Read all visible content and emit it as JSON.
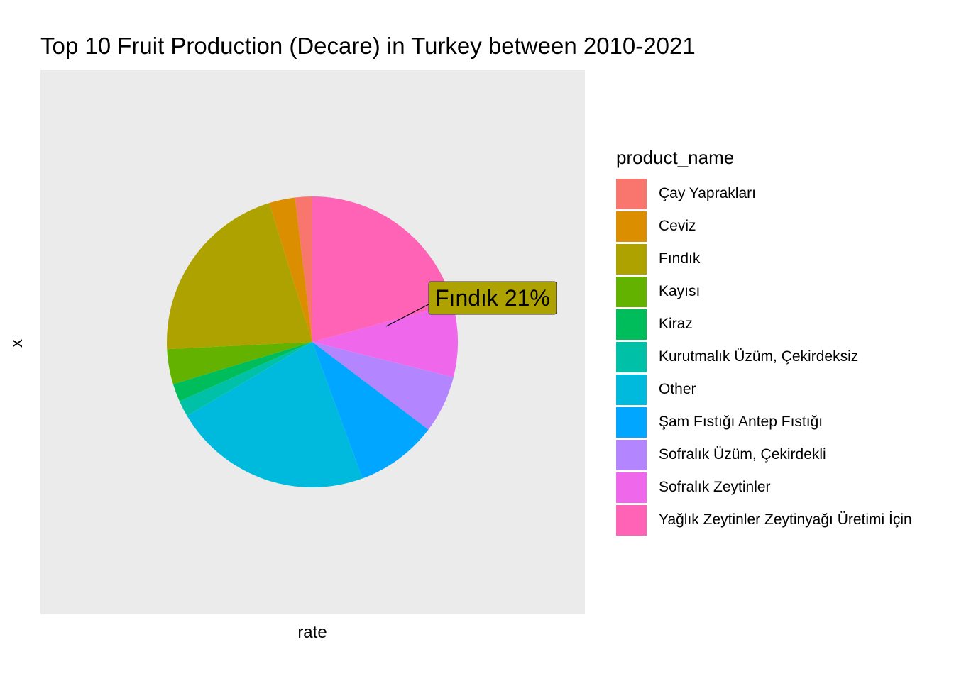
{
  "chart_data": {
    "type": "pie",
    "title": "Top 10 Fruit Production (Decare) in Turkey between 2010-2021",
    "xlabel": "rate",
    "ylabel": "x",
    "legend_title": "product_name",
    "legend_position": "right",
    "grid": false,
    "slices": [
      {
        "name": "Çay Yaprakları",
        "value": 1.9,
        "color": "#F8766D"
      },
      {
        "name": "Ceviz",
        "value": 2.9,
        "color": "#DB8E00"
      },
      {
        "name": "Fındık",
        "value": 21.0,
        "color": "#AEA200"
      },
      {
        "name": "Kayısı",
        "value": 3.9,
        "color": "#64B200"
      },
      {
        "name": "Kiraz",
        "value": 2.0,
        "color": "#00BD5C"
      },
      {
        "name": "Kurutmalık Üzüm, Çekirdeksiz",
        "value": 1.8,
        "color": "#00C1A7"
      },
      {
        "name": "Other",
        "value": 22.1,
        "color": "#00BADE"
      },
      {
        "name": "Şam Fıstığı Antep Fıstığı",
        "value": 9.1,
        "color": "#00A6FF"
      },
      {
        "name": "Sofralık Üzüm, Çekirdekli",
        "value": 6.4,
        "color": "#B385FF"
      },
      {
        "name": "Sofralık Zeytinler",
        "value": 8.1,
        "color": "#EF67EB"
      },
      {
        "name": "Yağlık Zeytinler Zeytinyağı Üretimi İçin",
        "value": 20.8,
        "color": "#FF63B6"
      }
    ],
    "annotation": {
      "text": "Fındık 21%",
      "series": "Fındık",
      "fill": "#AEA200"
    }
  }
}
